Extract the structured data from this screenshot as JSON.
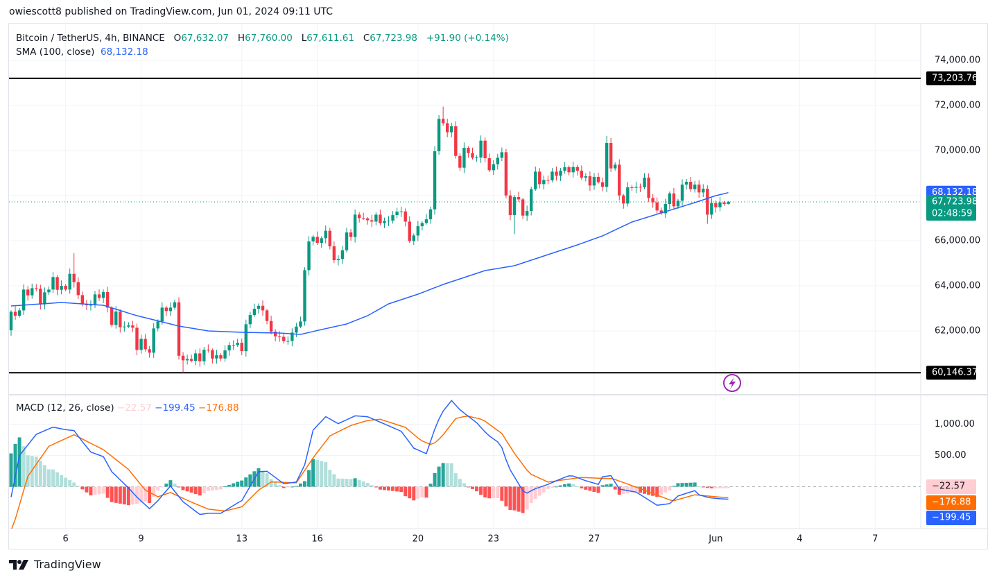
{
  "header": {
    "published": "owiescott8 published on TradingView.com, Jun 01, 2024 09:11 UTC"
  },
  "legend": {
    "symbol": "Bitcoin / TetherUS, 4h, BINANCE",
    "o_label": "O",
    "o": "67,632.07",
    "h_label": "H",
    "h": "67,760.00",
    "l_label": "L",
    "l": "67,611.61",
    "c_label": "C",
    "c": "67,723.98",
    "change": "+91.90 (+0.14%)",
    "sma_label": "SMA (100, close)",
    "sma_value": "68,132.18"
  },
  "macd_legend": {
    "label": "MACD (12, 26, close)",
    "hist": "−22.57",
    "macd": "−199.45",
    "signal": "−176.88"
  },
  "footer": {
    "brand": "TradingView",
    "logo_icon": "tradingview-logo-icon"
  },
  "colors": {
    "up": "#089981",
    "down": "#f23645",
    "sma": "#2962ff",
    "macd": "#2962ff",
    "signal": "#ff6d00",
    "hist_up_strong": "#26a69a",
    "hist_up_weak": "#b2dfdb",
    "hist_down_strong": "#ff5252",
    "hist_down_weak": "#ffcdd2",
    "alert": "#9c27b0"
  },
  "chart_data": {
    "type": "candlestick",
    "title": "Bitcoin / TetherUS, 4h, BINANCE",
    "interval": "4h",
    "first_open": 62029,
    "last_open": 67632.07,
    "closes": [
      62850,
      62675,
      62911,
      63835,
      63578,
      63896,
      63876,
      63178,
      63712,
      63835,
      64389,
      63824,
      63999,
      63835,
      64532,
      64163,
      63588,
      63178,
      63137,
      63158,
      63619,
      63465,
      63722,
      63034,
      62265,
      62860,
      62162,
      62193,
      62245,
      62142,
      61157,
      61650,
      61188,
      61034,
      62111,
      62419,
      63034,
      62880,
      63034,
      63270,
      60900,
      60695,
      60757,
      60675,
      61003,
      60654,
      61167,
      61147,
      60777,
      60921,
      60777,
      61136,
      61372,
      61372,
      61475,
      61105,
      62296,
      62706,
      62983,
      63116,
      62911,
      62439,
      61968,
      61762,
      61740,
      61547,
      61557,
      61926,
      62193,
      62419,
      64696,
      65969,
      66174,
      65907,
      66112,
      66441,
      65753,
      65138,
      65189,
      65579,
      66369,
      66164,
      67159,
      67003,
      66990,
      66910,
      66849,
      67157,
      66777,
      66880,
      66890,
      67136,
      67290,
      67300,
      66849,
      65987,
      66233,
      66644,
      66787,
      66951,
      67393,
      69968,
      71405,
      71210,
      70809,
      71076,
      69763,
      69240,
      70122,
      69886,
      69681,
      69690,
      70440,
      69660,
      69127,
      69394,
      69681,
      69927,
      68008,
      67136,
      67937,
      67834,
      67116,
      67321,
      68285,
      69065,
      68511,
      68696,
      68680,
      69065,
      68881,
      69106,
      69260,
      69035,
      69270,
      69106,
      68799,
      68860,
      68450,
      68830,
      68594,
      68388,
      70338,
      69209,
      69373,
      68009,
      67650,
      68368,
      68350,
      68388,
      68370,
      68799,
      67896,
      67701,
      67342,
      67219,
      67629,
      68101,
      67527,
      67773,
      68491,
      68614,
      68286,
      68491,
      68142,
      68306,
      67157,
      67670,
      67485,
      67701,
      67632,
      67723.98
    ],
    "wick_overrides": {
      "15": [
        65450,
        null
      ],
      "103": [
        71950,
        null
      ],
      "41": [
        null,
        60150
      ],
      "120": [
        null,
        66295
      ],
      "142": [
        70650,
        null
      ],
      "166": [
        null,
        66750
      ],
      "171": [
        67760,
        67611.61
      ]
    },
    "sma": {
      "name": "SMA (100, close)",
      "samples": [
        [
          0,
          63107
        ],
        [
          12,
          63261
        ],
        [
          22,
          63138
        ],
        [
          30,
          62676
        ],
        [
          40,
          62215
        ],
        [
          47,
          62000
        ],
        [
          55,
          61938
        ],
        [
          64,
          61907
        ],
        [
          69,
          61846
        ],
        [
          74,
          62061
        ],
        [
          80,
          62307
        ],
        [
          85,
          62676
        ],
        [
          90,
          63200
        ],
        [
          97,
          63630
        ],
        [
          103,
          64061
        ],
        [
          113,
          64677
        ],
        [
          120,
          64892
        ],
        [
          126,
          65261
        ],
        [
          135,
          65815
        ],
        [
          141,
          66215
        ],
        [
          148,
          66830
        ],
        [
          156,
          67292
        ],
        [
          163,
          67692
        ],
        [
          168,
          68000
        ],
        [
          171,
          68132.18
        ]
      ]
    },
    "macd": {
      "name": "MACD",
      "samples": [
        [
          0,
          -167
        ],
        [
          2,
          499
        ],
        [
          6,
          839
        ],
        [
          10,
          954
        ],
        [
          13,
          913
        ],
        [
          15,
          899
        ],
        [
          17,
          721
        ],
        [
          19,
          555
        ],
        [
          22,
          481
        ],
        [
          24,
          240
        ],
        [
          28,
          -19
        ],
        [
          30,
          -167
        ],
        [
          33,
          -352
        ],
        [
          35,
          -223
        ],
        [
          38,
          11
        ],
        [
          41,
          -241
        ],
        [
          45,
          -445
        ],
        [
          47,
          -426
        ],
        [
          50,
          -426
        ],
        [
          54,
          -260
        ],
        [
          55,
          -223
        ],
        [
          59,
          240
        ],
        [
          61,
          247
        ],
        [
          65,
          48
        ],
        [
          68,
          74
        ],
        [
          70,
          351
        ],
        [
          72,
          906
        ],
        [
          75,
          1121
        ],
        [
          78,
          1010
        ],
        [
          82,
          1135
        ],
        [
          85,
          1120
        ],
        [
          90.5,
          961
        ],
        [
          93,
          888
        ],
        [
          96,
          617
        ],
        [
          99,
          529
        ],
        [
          101.5,
          1017
        ],
        [
          103,
          1209
        ],
        [
          105,
          1380
        ],
        [
          107,
          1232
        ],
        [
          111,
          1024
        ],
        [
          113.6,
          832
        ],
        [
          116.7,
          684
        ],
        [
          118.6,
          314
        ],
        [
          122.5,
          -123
        ],
        [
          124.7,
          -38
        ],
        [
          128,
          37
        ],
        [
          131.8,
          147
        ],
        [
          133.5,
          184
        ],
        [
          136.8,
          99
        ],
        [
          140,
          37
        ],
        [
          141,
          159
        ],
        [
          143,
          177
        ],
        [
          145,
          -38
        ],
        [
          149,
          -86
        ],
        [
          154,
          -297
        ],
        [
          157,
          -271
        ],
        [
          159,
          -149
        ],
        [
          163,
          -63
        ],
        [
          164,
          -130
        ],
        [
          166.5,
          -178
        ],
        [
          169,
          -193
        ],
        [
          171,
          -199.45
        ]
      ]
    },
    "signal": {
      "name": "Signal",
      "samples": [
        [
          0,
          -700
        ],
        [
          1,
          -519
        ],
        [
          4,
          166
        ],
        [
          9,
          647
        ],
        [
          15,
          832
        ],
        [
          22,
          592
        ],
        [
          28,
          277
        ],
        [
          32,
          -56
        ],
        [
          35,
          -160
        ],
        [
          38,
          -93
        ],
        [
          43,
          -248
        ],
        [
          47,
          -359
        ],
        [
          51,
          -389
        ],
        [
          55,
          -322
        ],
        [
          59,
          -56
        ],
        [
          62,
          77
        ],
        [
          68,
          62
        ],
        [
          72,
          462
        ],
        [
          76,
          813
        ],
        [
          81,
          980
        ],
        [
          85,
          1060
        ],
        [
          88,
          1080
        ],
        [
          94,
          950
        ],
        [
          97.7,
          740
        ],
        [
          100.4,
          666
        ],
        [
          102.6,
          795
        ],
        [
          106,
          1091
        ],
        [
          108.7,
          1135
        ],
        [
          112.5,
          1073
        ],
        [
          117,
          851
        ],
        [
          120,
          536
        ],
        [
          123.6,
          210
        ],
        [
          128,
          74
        ],
        [
          135.7,
          147
        ],
        [
          143.4,
          129
        ],
        [
          151,
          -56
        ],
        [
          157.7,
          -230
        ],
        [
          163,
          -130
        ],
        [
          169,
          -167
        ],
        [
          171,
          -176.88
        ]
      ]
    },
    "histogram": {
      "name": "MACD - Signal",
      "last": -22.57
    },
    "price_axis": {
      "ticks": [
        "74,000.00",
        "72,000.00",
        "70,000.00",
        "66,000.00",
        "64,000.00",
        "62,000.00"
      ],
      "tick_values": [
        74000,
        72000,
        70000,
        66000,
        64000,
        62000
      ]
    },
    "macd_axis": {
      "ticks": [
        "1,000.00",
        "500.00"
      ],
      "tick_values": [
        1000,
        500
      ]
    },
    "time_axis": {
      "ticks": [
        "6",
        "9",
        "13",
        "16",
        "20",
        "23",
        "27",
        "Jun",
        "4",
        "7"
      ],
      "tick_candle_index": [
        13,
        31,
        55,
        73,
        97,
        115,
        139,
        168,
        188,
        206
      ]
    },
    "horizontal_lines": [
      {
        "value": 73203.76,
        "label": "73,203.76"
      },
      {
        "value": 60146.37,
        "label": "60,146.37"
      }
    ],
    "price_labels": {
      "sma": "68,132.18",
      "sma_value": 68132.18,
      "last": "67,723.98",
      "last_value": 67723.98,
      "countdown": "02:48:59"
    },
    "macd_labels": {
      "hist": "−22.57",
      "signal": "−176.88",
      "macd": "−199.45"
    }
  }
}
